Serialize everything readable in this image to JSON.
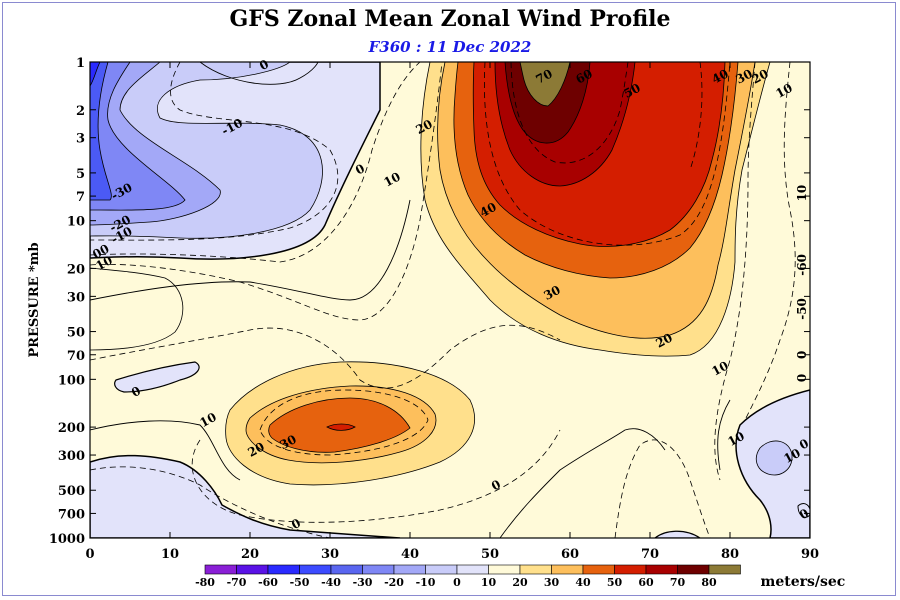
{
  "header": {
    "title": "GFS Zonal Mean Zonal Wind Profile",
    "subtitle": "F360 : 11 Dec 2022"
  },
  "chart_data": {
    "type": "contour",
    "title": "GFS Zonal Mean Zonal Wind Profile",
    "subtitle": "F360 : 11 Dec 2022",
    "xlabel": "",
    "ylabel": "PRESSURE *mb",
    "xlim": [
      0,
      90
    ],
    "ylim_pressure_mb": [
      1000,
      1
    ],
    "y_scale": "log",
    "x_ticks": [
      0,
      10,
      20,
      30,
      40,
      50,
      60,
      70,
      80,
      90
    ],
    "y_ticks": [
      1,
      2,
      3,
      5,
      7,
      10,
      20,
      30,
      50,
      70,
      100,
      200,
      300,
      500,
      700,
      1000
    ],
    "colorbar": {
      "levels": [
        -80,
        -70,
        -60,
        -50,
        -40,
        -30,
        -20,
        -10,
        0,
        10,
        20,
        30,
        40,
        50,
        60,
        70,
        80
      ],
      "colors": [
        "#8a1fd6",
        "#5a12e6",
        "#2a2aff",
        "#3c4bff",
        "#5a66f0",
        "#7f87f5",
        "#a3a8f7",
        "#c9ccf9",
        "#e2e3fa",
        "#fffad9",
        "#ffe08c",
        "#fdbf5c",
        "#e6620e",
        "#d41e00",
        "#a80000",
        "#6e0000",
        "#8c7a36"
      ],
      "units": "meters/sec"
    },
    "contour_labels": [
      "0",
      "-10",
      "-30",
      "-20",
      "-10",
      "00",
      "10",
      "0",
      "10",
      "20",
      "40",
      "70",
      "60",
      "50",
      "40",
      "30",
      "20",
      "10",
      "30",
      "20",
      "10",
      "0",
      "10",
      "20",
      "30",
      "0",
      "0",
      "10",
      "10",
      "0",
      "0",
      "10",
      "-50",
      "-60",
      "0",
      "0"
    ]
  }
}
